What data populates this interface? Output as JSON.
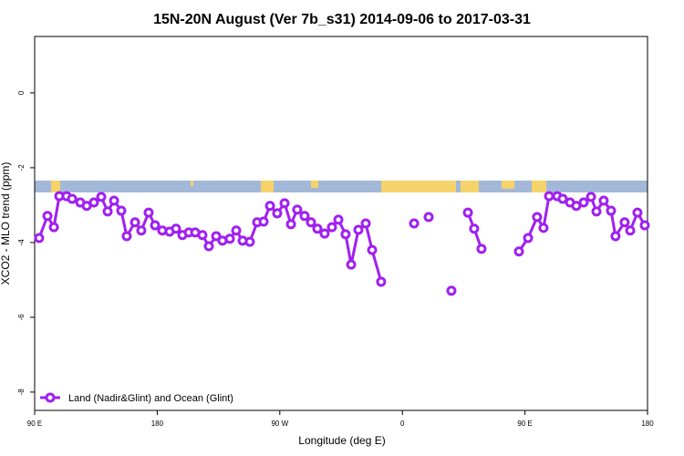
{
  "chart_data": {
    "type": "line",
    "title": "15N-20N August (Ver 7b_s31)   2014-09-06 to 2017-03-31",
    "x_label": "Longitude (deg E)",
    "y_label": "XCO2 - MLO trend (ppm)",
    "xlim": [
      90,
      540
    ],
    "ylim": [
      -8.49,
      1.51
    ],
    "xticks": [
      {
        "value": 90,
        "label": "90 E"
      },
      180,
      {
        "value": 270,
        "label": "90 W"
      },
      {
        "value": 360,
        "label": "0"
      },
      {
        "value": 450,
        "label": "90 E"
      },
      {
        "value": 540,
        "label": "180"
      }
    ],
    "yticks": [
      0,
      -2,
      -4,
      -6,
      -8
    ],
    "legend_position": "bottom-left",
    "x": [
      93.3,
      99.4,
      104.1,
      108.1,
      113.4,
      117.5,
      123.5,
      128.2,
      133.5,
      138.9,
      143.6,
      148.3,
      153.6,
      157.6,
      163.7,
      168.3,
      173.7,
      178.4,
      183.7,
      189.1,
      193.8,
      198.5,
      203.2,
      207.9,
      213.2,
      217.9,
      223.3,
      227.9,
      233.3,
      238.0,
      242.7,
      248.0,
      253.4,
      258.1,
      262.8,
      268.1,
      273.5,
      278.2,
      282.8,
      288.2,
      292.9,
      297.6,
      302.9,
      308.3,
      313.0,
      318.3,
      322.4,
      327.7,
      333.1,
      337.8,
      344.4,
      null,
      368.6,
      null,
      379.3,
      null,
      396.0,
      null,
      408.1,
      412.7,
      418.1,
      null,
      445.6,
      452.3,
      458.9,
      463.6,
      467.7,
      473.7,
      477.7,
      483.1,
      487.7,
      493.1,
      498.5,
      502.5,
      507.8,
      513.2,
      516.5,
      523.2,
      527.3,
      532.6,
      538.0
    ],
    "series": [
      {
        "name": "Land (Nadir&Glint) and Ocean (Glint)",
        "color": "#a020f0",
        "values": [
          -3.88,
          -3.29,
          -3.59,
          -2.76,
          -2.76,
          -2.83,
          -2.93,
          -3.02,
          -2.93,
          -2.78,
          -3.17,
          -2.88,
          -3.15,
          -3.83,
          -3.46,
          -3.68,
          -3.2,
          -3.54,
          -3.68,
          -3.71,
          -3.63,
          -3.8,
          -3.73,
          -3.73,
          -3.8,
          -4.1,
          -3.83,
          -3.95,
          -3.9,
          -3.68,
          -3.95,
          -3.98,
          -3.46,
          -3.44,
          -3.02,
          -3.22,
          -2.95,
          -3.51,
          -3.12,
          -3.29,
          -3.46,
          -3.63,
          -3.76,
          -3.59,
          -3.39,
          -3.78,
          -4.59,
          -3.66,
          -3.49,
          -4.2,
          -5.05,
          null,
          -3.49,
          null,
          -3.32,
          null,
          -5.29,
          null,
          -3.2,
          -3.63,
          -4.17,
          null,
          -4.24,
          -3.88,
          -3.32,
          -3.61,
          -2.76,
          -2.76,
          -2.83,
          -2.93,
          -3.02,
          -2.93,
          -2.78,
          -3.17,
          -2.88,
          -3.15,
          -3.83,
          -3.46,
          -3.68,
          -3.2,
          -3.54
        ]
      }
    ]
  }
}
